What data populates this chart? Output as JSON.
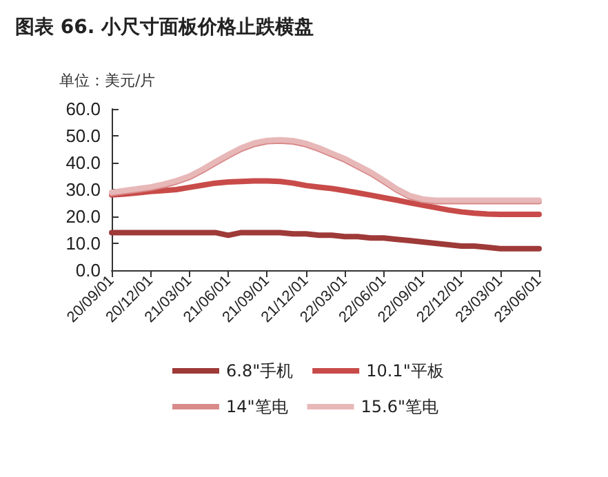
{
  "chart_data": {
    "type": "line",
    "title": "图表 66. 小尺寸面板价格止跌横盘",
    "ylabel": "单位：美元/片",
    "categories": [
      "20/09/01",
      null,
      null,
      "20/12/01",
      null,
      null,
      "21/03/01",
      null,
      null,
      "21/06/01",
      null,
      null,
      "21/09/01",
      null,
      null,
      "21/12/01",
      null,
      null,
      "22/03/01",
      null,
      null,
      "22/06/01",
      null,
      null,
      "22/09/01",
      null,
      null,
      "22/12/01",
      null,
      null,
      "23/03/01",
      null,
      null,
      "23/06/01"
    ],
    "ylim": [
      0,
      60
    ],
    "yticks": [
      {
        "value": 0,
        "label": "0.0"
      },
      {
        "value": 10,
        "label": "10.0"
      },
      {
        "value": 20,
        "label": "20.0"
      },
      {
        "value": 30,
        "label": "30.0"
      },
      {
        "value": 40,
        "label": "40.0"
      },
      {
        "value": 50,
        "label": "50.0"
      },
      {
        "value": 60,
        "label": "60.0"
      }
    ],
    "series": [
      {
        "name": "6.8\"手机",
        "color": "#9e3a38",
        "values": [
          14,
          14,
          14,
          14,
          14,
          14,
          14,
          14,
          14,
          13,
          14,
          14,
          14,
          14,
          13.5,
          13.5,
          13,
          13,
          12.5,
          12.5,
          12,
          12,
          11.5,
          11,
          10.5,
          10,
          9.5,
          9,
          9,
          8.5,
          8,
          8,
          8,
          8
        ]
      },
      {
        "name": "10.1\"平板",
        "color": "#c84b49",
        "values": [
          28,
          28.3,
          28.8,
          29.3,
          29.6,
          30,
          30.8,
          31.6,
          32.4,
          32.8,
          33,
          33.2,
          33.2,
          33,
          32.4,
          31.5,
          30.9,
          30.4,
          29.6,
          28.8,
          27.9,
          27,
          26.1,
          25.1,
          24.2,
          23.3,
          22.4,
          21.7,
          21.2,
          20.9,
          20.8,
          20.8,
          20.8,
          20.8
        ]
      },
      {
        "name": "14\"笔电",
        "color": "#d98a8a",
        "values": [
          28.5,
          29.2,
          29.8,
          30.5,
          31.5,
          32.8,
          34.5,
          37,
          39.8,
          42.5,
          45,
          46.8,
          47.8,
          48,
          47.7,
          46.7,
          45,
          43,
          41,
          38.5,
          36,
          33,
          29.8,
          27.3,
          26,
          25.5,
          25.5,
          25.5,
          25.5,
          25.5,
          25.5,
          25.5,
          25.5,
          25.5
        ]
      },
      {
        "name": "15.6\"笔电",
        "color": "#e8b8b8",
        "values": [
          29,
          29.7,
          30.3,
          31,
          32,
          33.3,
          35,
          37.5,
          40.3,
          43,
          45.5,
          47.3,
          48.3,
          48.5,
          48.2,
          47.2,
          45.5,
          43.5,
          41.5,
          39,
          36.5,
          33.5,
          30.3,
          27.8,
          26.5,
          26,
          26,
          26,
          26,
          26,
          26,
          26,
          26,
          26
        ]
      }
    ],
    "grid": false,
    "legend": "bottom",
    "marker": "none",
    "line_style": "solid"
  }
}
